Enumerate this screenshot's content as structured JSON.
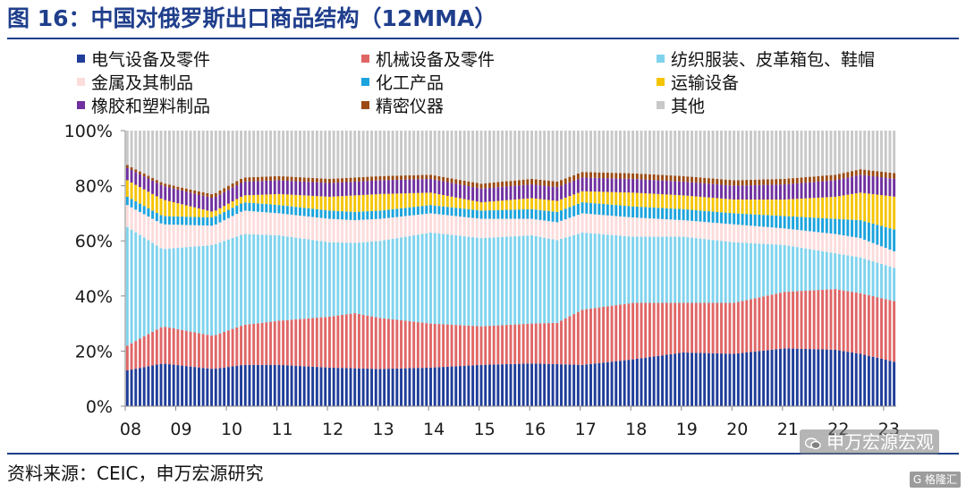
{
  "figure": {
    "title": "图 16：中国对俄罗斯出口商品结构（12MMA）",
    "source": "资料来源：CEIC，申万宏源研究",
    "watermark": "申万宏源宏观",
    "brand_tag": "G 格隆汇"
  },
  "chart_data": {
    "type": "bar",
    "stacked": true,
    "percent_stacked": true,
    "title": "",
    "xlabel": "",
    "ylabel": "",
    "ylim": [
      0,
      100
    ],
    "y_ticks": [
      "0%",
      "20%",
      "40%",
      "60%",
      "80%",
      "100%"
    ],
    "x_tick_labels": [
      "08",
      "09",
      "10",
      "11",
      "12",
      "13",
      "14",
      "15",
      "16",
      "17",
      "18",
      "19",
      "20",
      "21",
      "22",
      "23"
    ],
    "x_range": [
      "2008-01",
      "2023-03"
    ],
    "frequency": "monthly",
    "legend_position": "top",
    "grid": false,
    "series": [
      {
        "name": "电气设备及零件",
        "color": "#1f3d99",
        "knots": [
          [
            2008.0,
            13
          ],
          [
            2008.7,
            15.5
          ],
          [
            2009.7,
            13.5
          ],
          [
            2010.3,
            15
          ],
          [
            2011.0,
            15
          ],
          [
            2012.0,
            14
          ],
          [
            2013.0,
            13.5
          ],
          [
            2014.0,
            14
          ],
          [
            2015.0,
            15
          ],
          [
            2016.0,
            15.5
          ],
          [
            2017.0,
            15
          ],
          [
            2018.0,
            17
          ],
          [
            2019.0,
            19.5
          ],
          [
            2020.0,
            19
          ],
          [
            2021.0,
            21
          ],
          [
            2022.0,
            20.5
          ],
          [
            2022.5,
            19
          ],
          [
            2023.2,
            16
          ]
        ]
      },
      {
        "name": "机械设备及零件",
        "color": "#e06666",
        "knots": [
          [
            2008.0,
            9
          ],
          [
            2008.7,
            13.5
          ],
          [
            2009.7,
            12
          ],
          [
            2010.3,
            14.5
          ],
          [
            2011.0,
            16
          ],
          [
            2012.0,
            18.5
          ],
          [
            2012.5,
            20
          ],
          [
            2013.0,
            18.5
          ],
          [
            2014.0,
            16
          ],
          [
            2015.0,
            14
          ],
          [
            2016.0,
            14.5
          ],
          [
            2016.5,
            15
          ],
          [
            2017.0,
            20
          ],
          [
            2018.0,
            20.5
          ],
          [
            2019.0,
            18
          ],
          [
            2020.0,
            18.5
          ],
          [
            2021.0,
            20.5
          ],
          [
            2022.0,
            22
          ],
          [
            2022.5,
            22
          ],
          [
            2023.2,
            22
          ]
        ]
      },
      {
        "name": "纺织服装、皮革箱包、鞋帽",
        "color": "#7fd3ee",
        "knots": [
          [
            2008.0,
            43
          ],
          [
            2008.7,
            28
          ],
          [
            2009.7,
            33
          ],
          [
            2010.3,
            33
          ],
          [
            2011.0,
            31
          ],
          [
            2012.0,
            27
          ],
          [
            2012.5,
            25.5
          ],
          [
            2013.0,
            28
          ],
          [
            2014.0,
            33
          ],
          [
            2015.0,
            32
          ],
          [
            2016.0,
            32
          ],
          [
            2017.0,
            28
          ],
          [
            2018.0,
            24
          ],
          [
            2019.0,
            24
          ],
          [
            2020.0,
            22
          ],
          [
            2021.0,
            17
          ],
          [
            2022.0,
            13
          ],
          [
            2022.5,
            13
          ],
          [
            2023.2,
            12
          ]
        ]
      },
      {
        "name": "金属及其制品",
        "color": "#fcdcdc",
        "knots": [
          [
            2008.0,
            8
          ],
          [
            2008.7,
            9
          ],
          [
            2009.7,
            7
          ],
          [
            2010.3,
            8.5
          ],
          [
            2011.0,
            8
          ],
          [
            2012.0,
            8.5
          ],
          [
            2013.0,
            8
          ],
          [
            2014.0,
            7
          ],
          [
            2015.0,
            7
          ],
          [
            2016.0,
            6
          ],
          [
            2017.0,
            7
          ],
          [
            2018.0,
            7
          ],
          [
            2019.0,
            6
          ],
          [
            2020.0,
            6.5
          ],
          [
            2021.0,
            6
          ],
          [
            2022.0,
            7
          ],
          [
            2022.5,
            7
          ],
          [
            2023.2,
            6
          ]
        ]
      },
      {
        "name": "化工产品",
        "color": "#1ba3dd",
        "knots": [
          [
            2008.0,
            3
          ],
          [
            2008.7,
            3
          ],
          [
            2009.7,
            3
          ],
          [
            2010.3,
            3
          ],
          [
            2011.0,
            3
          ],
          [
            2012.0,
            3
          ],
          [
            2013.0,
            3
          ],
          [
            2014.0,
            3
          ],
          [
            2015.0,
            3
          ],
          [
            2016.0,
            3.5
          ],
          [
            2017.0,
            4
          ],
          [
            2018.0,
            4
          ],
          [
            2019.0,
            4
          ],
          [
            2020.0,
            4
          ],
          [
            2021.0,
            4.5
          ],
          [
            2022.0,
            5.5
          ],
          [
            2022.5,
            6.5
          ],
          [
            2023.2,
            8
          ]
        ]
      },
      {
        "name": "运输设备",
        "color": "#f5c400",
        "knots": [
          [
            2008.0,
            6
          ],
          [
            2008.7,
            6
          ],
          [
            2009.7,
            2
          ],
          [
            2010.3,
            2.5
          ],
          [
            2011.0,
            4
          ],
          [
            2012.0,
            5
          ],
          [
            2012.5,
            6
          ],
          [
            2013.0,
            6
          ],
          [
            2014.0,
            4.5
          ],
          [
            2015.0,
            3
          ],
          [
            2016.0,
            4
          ],
          [
            2017.0,
            4
          ],
          [
            2018.0,
            5
          ],
          [
            2019.0,
            5
          ],
          [
            2020.0,
            5
          ],
          [
            2021.0,
            6
          ],
          [
            2022.0,
            8
          ],
          [
            2022.5,
            10
          ],
          [
            2023.2,
            12
          ]
        ]
      },
      {
        "name": "橡胶和塑料制品",
        "color": "#7030a0",
        "knots": [
          [
            2008.0,
            4.5
          ],
          [
            2008.7,
            5
          ],
          [
            2009.7,
            5
          ],
          [
            2010.3,
            5
          ],
          [
            2011.0,
            5
          ],
          [
            2012.0,
            5
          ],
          [
            2013.0,
            5
          ],
          [
            2014.0,
            5
          ],
          [
            2015.0,
            5
          ],
          [
            2016.0,
            5
          ],
          [
            2017.0,
            5
          ],
          [
            2018.0,
            5
          ],
          [
            2019.0,
            5
          ],
          [
            2020.0,
            5
          ],
          [
            2021.0,
            5.5
          ],
          [
            2022.0,
            6
          ],
          [
            2022.5,
            6.5
          ],
          [
            2023.2,
            6.5
          ]
        ]
      },
      {
        "name": "精密仪器",
        "color": "#9c4a12",
        "knots": [
          [
            2008.0,
            1
          ],
          [
            2009.0,
            1
          ],
          [
            2010.0,
            1.5
          ],
          [
            2012.0,
            1.5
          ],
          [
            2014.0,
            1.5
          ],
          [
            2016.0,
            2
          ],
          [
            2018.0,
            2
          ],
          [
            2020.0,
            2
          ],
          [
            2022.0,
            2
          ],
          [
            2023.2,
            2
          ]
        ]
      },
      {
        "name": "其他",
        "color": "#c8c8c8",
        "remainder_to": 100
      }
    ]
  }
}
